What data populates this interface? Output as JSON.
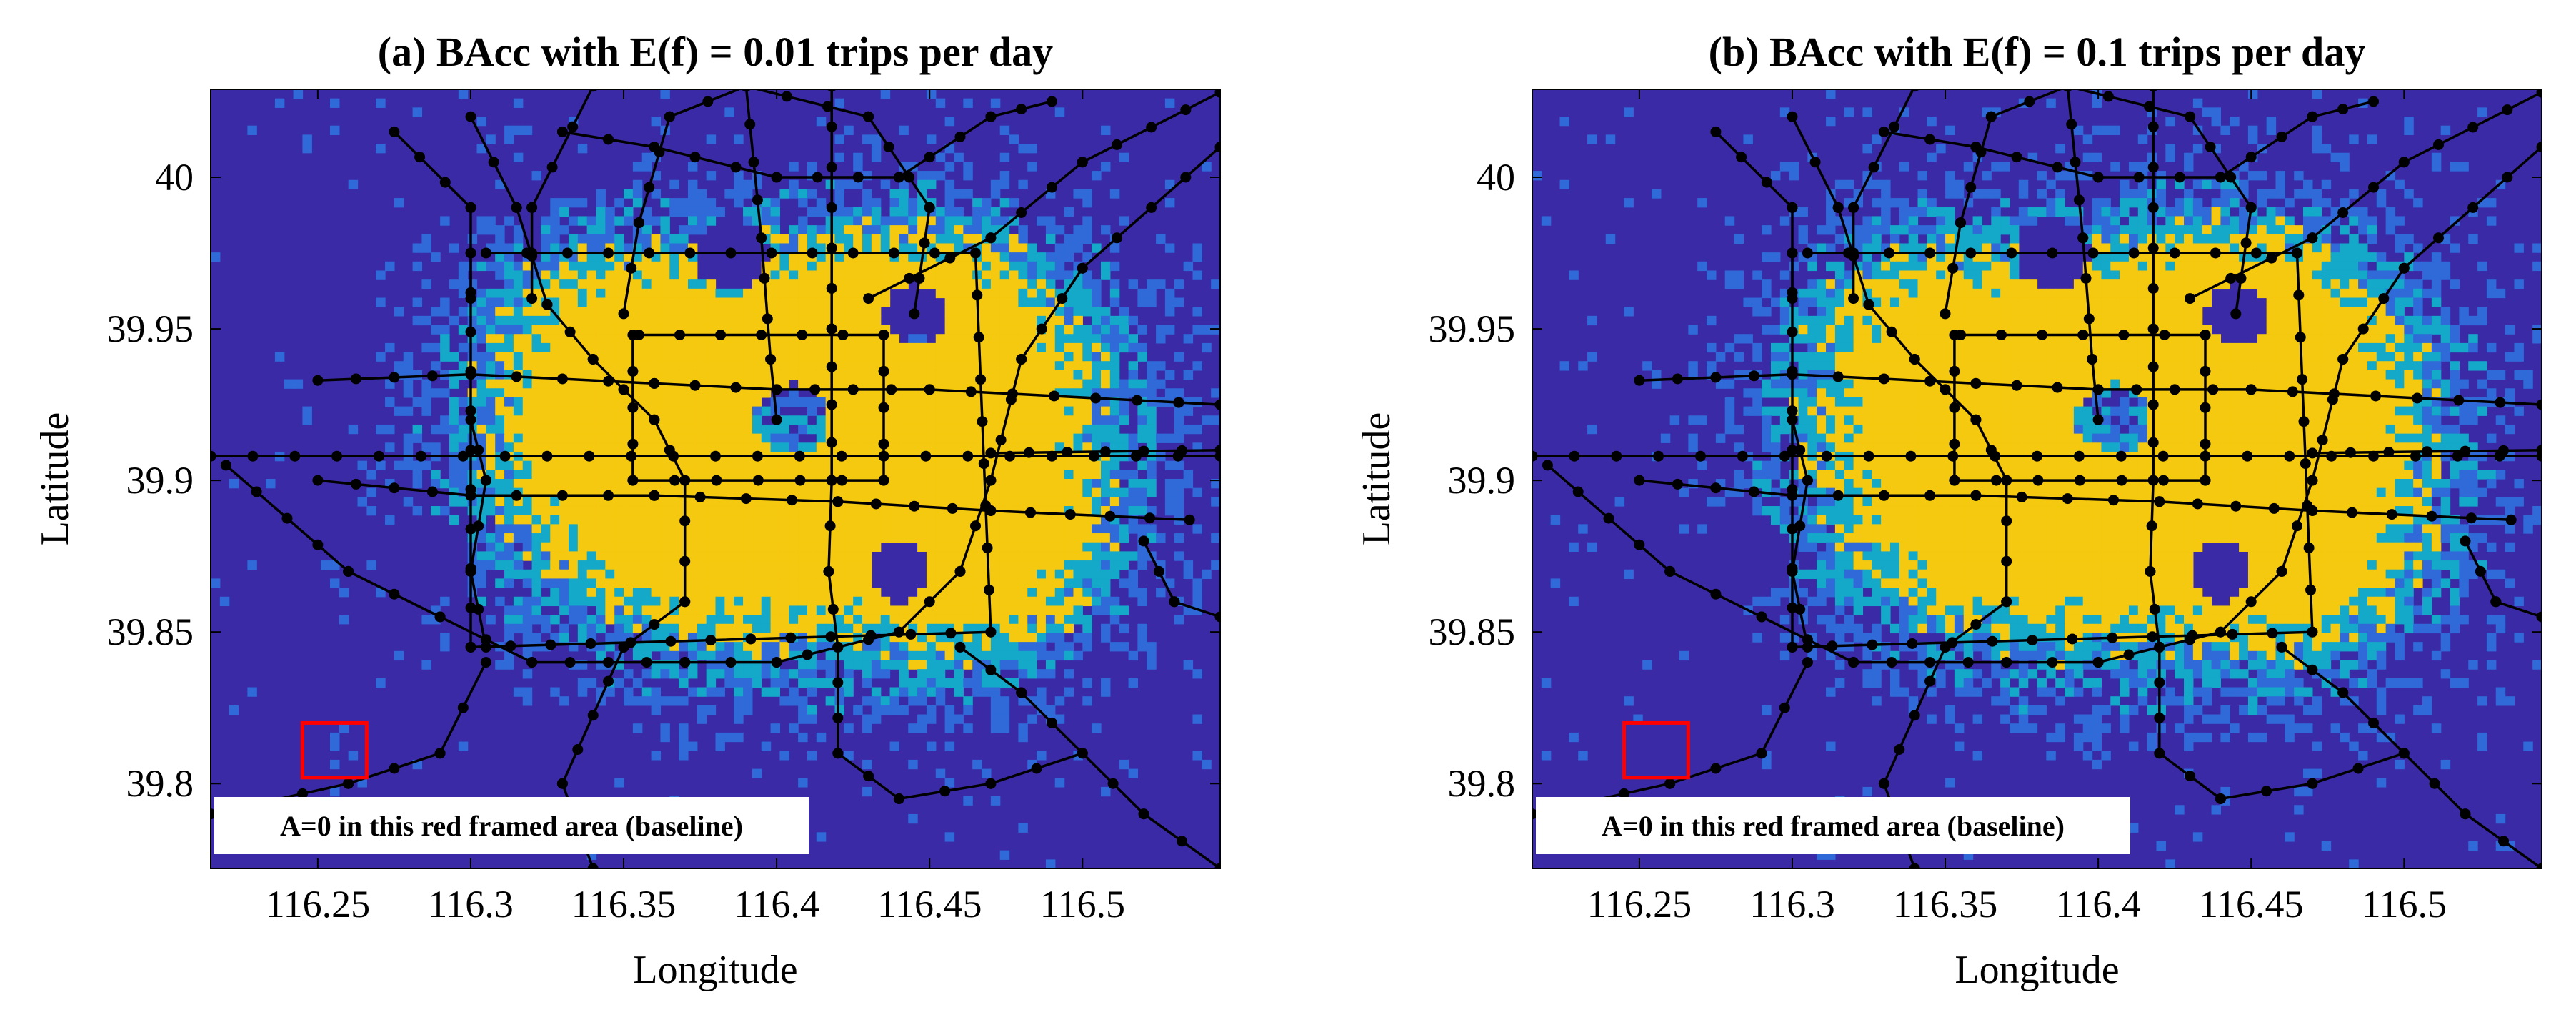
{
  "figure": {
    "colors": {
      "background": "#3b2aa6",
      "low": "#2f6ad8",
      "mid": "#14a9c8",
      "high": "#f5c90f",
      "rail": "#000000",
      "station": "#000000",
      "frame": "#ff0000",
      "note_box": "#ffffff"
    }
  },
  "chart_data": [
    {
      "type": "heatmap",
      "title": "(a) BAcc with E(f) = 0.01 trips per day",
      "xlabel": "Longitude",
      "ylabel": "Latitude",
      "xlim": [
        116.215,
        116.545
      ],
      "ylim": [
        39.772,
        40.029
      ],
      "xticks": [
        116.25,
        116.3,
        116.35,
        116.4,
        116.45,
        116.5
      ],
      "xtick_labels": [
        "116.25",
        "116.3",
        "116.35",
        "116.4",
        "116.45",
        "116.5"
      ],
      "yticks": [
        39.8,
        39.85,
        39.9,
        39.95,
        40
      ],
      "ytick_labels": [
        "39.8",
        "39.85",
        "39.9",
        "39.95",
        "40"
      ],
      "baseline_box": {
        "lon": [
          116.245,
          116.266
        ],
        "lat": [
          39.802,
          39.82
        ]
      },
      "annotation": "A=0 in this red framed area (baseline)",
      "seed": 7
    },
    {
      "type": "heatmap",
      "title": "(b) BAcc with E(f) = 0.1 trips per day",
      "xlabel": "Longitude",
      "ylabel": "Latitude",
      "xlim": [
        116.215,
        116.545
      ],
      "ylim": [
        39.772,
        40.029
      ],
      "xticks": [
        116.25,
        116.3,
        116.35,
        116.4,
        116.45,
        116.5
      ],
      "xtick_labels": [
        "116.25",
        "116.3",
        "116.35",
        "116.4",
        "116.45",
        "116.5"
      ],
      "yticks": [
        39.8,
        39.85,
        39.9,
        39.95,
        40
      ],
      "ytick_labels": [
        "39.8",
        "39.85",
        "39.9",
        "39.95",
        "40"
      ],
      "baseline_box": {
        "lon": [
          116.245,
          116.266
        ],
        "lat": [
          39.802,
          39.82
        ]
      },
      "annotation": "A=0 in this red framed area (baseline)",
      "seed": 11
    }
  ],
  "metro_lines": [
    {
      "name": "line-1",
      "points": [
        [
          116.215,
          39.908
        ],
        [
          116.545,
          39.908
        ]
      ]
    },
    {
      "name": "line-batong",
      "points": [
        [
          116.47,
          39.909
        ],
        [
          116.545,
          39.91
        ]
      ]
    },
    {
      "name": "line-2",
      "points": [
        [
          116.355,
          39.948
        ],
        [
          116.435,
          39.948
        ],
        [
          116.435,
          39.9
        ],
        [
          116.353,
          39.9
        ],
        [
          116.353,
          39.948
        ]
      ]
    },
    {
      "name": "line-10",
      "points": [
        [
          116.305,
          39.975
        ],
        [
          116.465,
          39.975
        ],
        [
          116.47,
          39.85
        ],
        [
          116.3,
          39.845
        ],
        [
          116.3,
          39.975
        ]
      ]
    },
    {
      "name": "line-4",
      "points": [
        [
          116.3,
          40.02
        ],
        [
          116.315,
          39.99
        ],
        [
          116.325,
          39.958
        ],
        [
          116.34,
          39.94
        ],
        [
          116.36,
          39.92
        ],
        [
          116.37,
          39.9
        ],
        [
          116.37,
          39.86
        ],
        [
          116.35,
          39.845
        ],
        [
          116.33,
          39.8
        ],
        [
          116.34,
          39.772
        ]
      ]
    },
    {
      "name": "line-5",
      "points": [
        [
          116.418,
          40.03
        ],
        [
          116.418,
          39.95
        ],
        [
          116.418,
          39.9
        ],
        [
          116.417,
          39.87
        ],
        [
          116.42,
          39.845
        ]
      ]
    },
    {
      "name": "line-6",
      "points": [
        [
          116.25,
          39.933
        ],
        [
          116.3,
          39.935
        ],
        [
          116.36,
          39.932
        ],
        [
          116.4,
          39.93
        ],
        [
          116.45,
          39.93
        ],
        [
          116.545,
          39.925
        ]
      ]
    },
    {
      "name": "line-7",
      "points": [
        [
          116.25,
          39.9
        ],
        [
          116.3,
          39.895
        ],
        [
          116.36,
          39.895
        ],
        [
          116.42,
          39.893
        ],
        [
          116.47,
          39.89
        ],
        [
          116.535,
          39.887
        ]
      ]
    },
    {
      "name": "line-8",
      "points": [
        [
          116.39,
          40.03
        ],
        [
          116.395,
          39.98
        ],
        [
          116.398,
          39.94
        ],
        [
          116.4,
          39.92
        ]
      ]
    },
    {
      "name": "line-9",
      "points": [
        [
          116.3,
          39.92
        ],
        [
          116.305,
          39.9
        ],
        [
          116.3,
          39.87
        ],
        [
          116.305,
          39.845
        ]
      ]
    },
    {
      "name": "line-13",
      "points": [
        [
          116.35,
          39.955
        ],
        [
          116.355,
          39.985
        ],
        [
          116.365,
          40.02
        ],
        [
          116.39,
          40.03
        ],
        [
          116.43,
          40.02
        ],
        [
          116.45,
          39.99
        ],
        [
          116.445,
          39.955
        ]
      ]
    },
    {
      "name": "line-14",
      "points": [
        [
          116.22,
          39.905
        ],
        [
          116.26,
          39.87
        ],
        [
          116.29,
          39.855
        ],
        [
          116.32,
          39.84
        ],
        [
          116.37,
          39.84
        ],
        [
          116.4,
          39.84
        ],
        [
          116.42,
          39.845
        ],
        [
          116.44,
          39.85
        ],
        [
          116.46,
          39.87
        ],
        [
          116.47,
          39.9
        ],
        [
          116.48,
          39.94
        ],
        [
          116.5,
          39.97
        ],
        [
          116.545,
          40.01
        ]
      ]
    },
    {
      "name": "line-15",
      "points": [
        [
          116.33,
          40.015
        ],
        [
          116.36,
          40.01
        ],
        [
          116.4,
          40.0
        ],
        [
          116.44,
          40.0
        ],
        [
          116.47,
          40.02
        ],
        [
          116.49,
          40.025
        ]
      ]
    },
    {
      "name": "line-16",
      "points": [
        [
          116.275,
          40.015
        ],
        [
          116.3,
          39.99
        ],
        [
          116.3,
          39.96
        ]
      ]
    },
    {
      "name": "line-yizhuang",
      "points": [
        [
          116.46,
          39.845
        ],
        [
          116.48,
          39.83
        ],
        [
          116.5,
          39.81
        ],
        [
          116.52,
          39.79
        ],
        [
          116.545,
          39.772
        ]
      ]
    },
    {
      "name": "line-daxing",
      "points": [
        [
          116.42,
          39.845
        ],
        [
          116.42,
          39.81
        ],
        [
          116.44,
          39.795
        ],
        [
          116.47,
          39.8
        ],
        [
          116.5,
          39.81
        ]
      ]
    },
    {
      "name": "line-fangshan",
      "points": [
        [
          116.215,
          39.79
        ],
        [
          116.26,
          39.8
        ],
        [
          116.29,
          39.81
        ],
        [
          116.305,
          39.84
        ]
      ]
    },
    {
      "name": "line-airport",
      "points": [
        [
          116.43,
          39.96
        ],
        [
          116.47,
          39.98
        ],
        [
          116.5,
          40.005
        ],
        [
          116.545,
          40.028
        ]
      ]
    },
    {
      "name": "line-changping",
      "points": [
        [
          116.32,
          39.96
        ],
        [
          116.32,
          39.99
        ],
        [
          116.34,
          40.03
        ]
      ]
    },
    {
      "name": "line-east",
      "points": [
        [
          116.52,
          39.88
        ],
        [
          116.53,
          39.86
        ],
        [
          116.545,
          39.855
        ]
      ]
    }
  ]
}
